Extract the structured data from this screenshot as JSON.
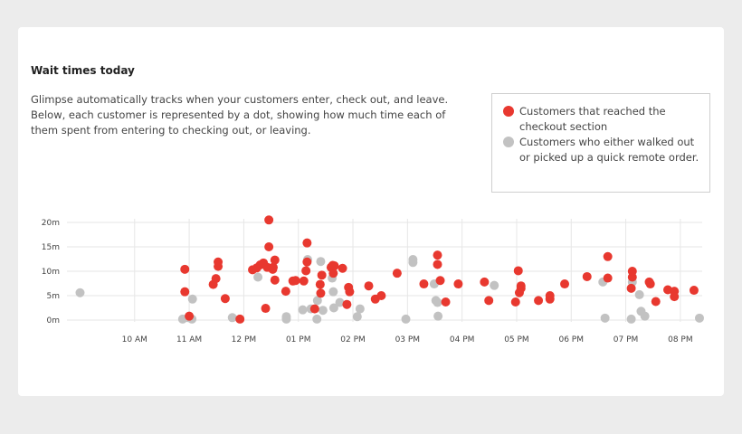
{
  "title": "Wait times today",
  "description": "Glimpse automatically tracks when your customers enter, check out, and leave. Below, each customer is represented by a dot, showing how much time each of them spent from entering to checking out, or leaving.",
  "legend": [
    {
      "label": "Customers that reached the checkout section",
      "color": "#e8382f"
    },
    {
      "label": "Customers who either walked out or picked up a quick remote order.",
      "color": "#c2c2c2"
    }
  ],
  "chart_data": {
    "type": "scatter",
    "title": "Wait times today",
    "xlabel": "",
    "ylabel": "",
    "x_unit": "hour of day (24h)",
    "y_unit": "minutes",
    "xlim": [
      8.76,
      20.4
    ],
    "ylim": [
      0,
      20
    ],
    "x_ticks": [
      {
        "value": 10,
        "label": "10 AM"
      },
      {
        "value": 11,
        "label": "11 AM"
      },
      {
        "value": 12,
        "label": "12 PM"
      },
      {
        "value": 13,
        "label": "01 PM"
      },
      {
        "value": 14,
        "label": "02 PM"
      },
      {
        "value": 15,
        "label": "03 PM"
      },
      {
        "value": 16,
        "label": "04 PM"
      },
      {
        "value": 17,
        "label": "05 PM"
      },
      {
        "value": 18,
        "label": "06 PM"
      },
      {
        "value": 19,
        "label": "07 PM"
      },
      {
        "value": 20,
        "label": "08 PM"
      }
    ],
    "y_ticks": [
      {
        "value": 0,
        "label": "0m"
      },
      {
        "value": 5,
        "label": "5m"
      },
      {
        "value": 10,
        "label": "10m"
      },
      {
        "value": 15,
        "label": "15m"
      },
      {
        "value": 20,
        "label": "20m"
      }
    ],
    "grid": true,
    "legend_position": "top-right",
    "series": [
      {
        "color": "#e8382f",
        "points": [
          [
            10.92,
            10.4
          ],
          [
            10.92,
            5.8
          ],
          [
            11.0,
            0.8
          ],
          [
            11.44,
            7.3
          ],
          [
            11.49,
            8.5
          ],
          [
            11.53,
            11.0
          ],
          [
            11.53,
            11.9
          ],
          [
            11.66,
            4.4
          ],
          [
            11.93,
            0.2
          ],
          [
            12.16,
            10.3
          ],
          [
            12.24,
            10.7
          ],
          [
            12.3,
            11.3
          ],
          [
            12.36,
            11.7
          ],
          [
            12.4,
            2.4
          ],
          [
            12.43,
            10.8
          ],
          [
            12.46,
            15.0
          ],
          [
            12.46,
            20.5
          ],
          [
            12.53,
            10.4
          ],
          [
            12.54,
            10.8
          ],
          [
            12.57,
            12.3
          ],
          [
            12.57,
            8.2
          ],
          [
            12.77,
            5.9
          ],
          [
            12.9,
            8.0
          ],
          [
            12.95,
            8.1
          ],
          [
            13.1,
            8.0
          ],
          [
            13.14,
            10.1
          ],
          [
            13.16,
            15.8
          ],
          [
            13.16,
            11.9
          ],
          [
            13.3,
            2.3
          ],
          [
            13.4,
            7.3
          ],
          [
            13.41,
            5.5
          ],
          [
            13.43,
            9.2
          ],
          [
            13.6,
            10.8
          ],
          [
            13.63,
            11.2
          ],
          [
            13.64,
            9.6
          ],
          [
            13.66,
            11.1
          ],
          [
            13.81,
            10.6
          ],
          [
            13.89,
            3.2
          ],
          [
            13.92,
            6.7
          ],
          [
            13.94,
            5.8
          ],
          [
            14.29,
            7.0
          ],
          [
            14.41,
            4.3
          ],
          [
            14.52,
            5.0
          ],
          [
            14.81,
            9.6
          ],
          [
            15.3,
            7.4
          ],
          [
            15.55,
            11.4
          ],
          [
            15.55,
            13.3
          ],
          [
            15.6,
            8.1
          ],
          [
            15.7,
            3.7
          ],
          [
            15.93,
            7.4
          ],
          [
            16.41,
            7.8
          ],
          [
            16.49,
            4.0
          ],
          [
            16.98,
            3.7
          ],
          [
            17.03,
            10.1
          ],
          [
            17.05,
            5.6
          ],
          [
            17.08,
            6.5
          ],
          [
            17.08,
            7.0
          ],
          [
            17.4,
            4.0
          ],
          [
            17.61,
            4.3
          ],
          [
            17.61,
            5.0
          ],
          [
            17.88,
            7.4
          ],
          [
            18.29,
            8.9
          ],
          [
            18.67,
            13.0
          ],
          [
            18.67,
            8.6
          ],
          [
            19.1,
            6.5
          ],
          [
            19.12,
            8.8
          ],
          [
            19.12,
            10.0
          ],
          [
            19.43,
            7.8
          ],
          [
            19.45,
            7.4
          ],
          [
            19.55,
            3.8
          ],
          [
            19.77,
            6.2
          ],
          [
            19.89,
            5.9
          ],
          [
            19.89,
            4.8
          ],
          [
            20.25,
            6.1
          ]
        ]
      },
      {
        "color": "#c2c2c2",
        "points": [
          [
            9.0,
            5.6
          ],
          [
            10.88,
            0.2
          ],
          [
            10.98,
            0.5
          ],
          [
            11.06,
            4.3
          ],
          [
            11.05,
            0.2
          ],
          [
            11.79,
            0.5
          ],
          [
            12.26,
            8.8
          ],
          [
            12.78,
            0.2
          ],
          [
            12.78,
            0.7
          ],
          [
            13.08,
            2.1
          ],
          [
            13.17,
            12.4
          ],
          [
            13.23,
            2.3
          ],
          [
            13.34,
            0.2
          ],
          [
            13.35,
            4.0
          ],
          [
            13.41,
            12.0
          ],
          [
            13.45,
            2.0
          ],
          [
            13.62,
            8.6
          ],
          [
            13.64,
            5.8
          ],
          [
            13.65,
            2.5
          ],
          [
            13.76,
            3.6
          ],
          [
            14.08,
            0.7
          ],
          [
            14.13,
            2.3
          ],
          [
            14.97,
            0.2
          ],
          [
            15.1,
            12.4
          ],
          [
            15.1,
            11.8
          ],
          [
            15.49,
            7.4
          ],
          [
            15.52,
            4.0
          ],
          [
            15.55,
            3.6
          ],
          [
            15.56,
            0.8
          ],
          [
            16.59,
            7.1
          ],
          [
            18.58,
            7.8
          ],
          [
            18.62,
            0.4
          ],
          [
            19.1,
            0.2
          ],
          [
            19.12,
            7.8
          ],
          [
            19.25,
            5.2
          ],
          [
            19.28,
            1.8
          ],
          [
            19.35,
            0.8
          ],
          [
            20.35,
            0.4
          ]
        ]
      }
    ]
  }
}
